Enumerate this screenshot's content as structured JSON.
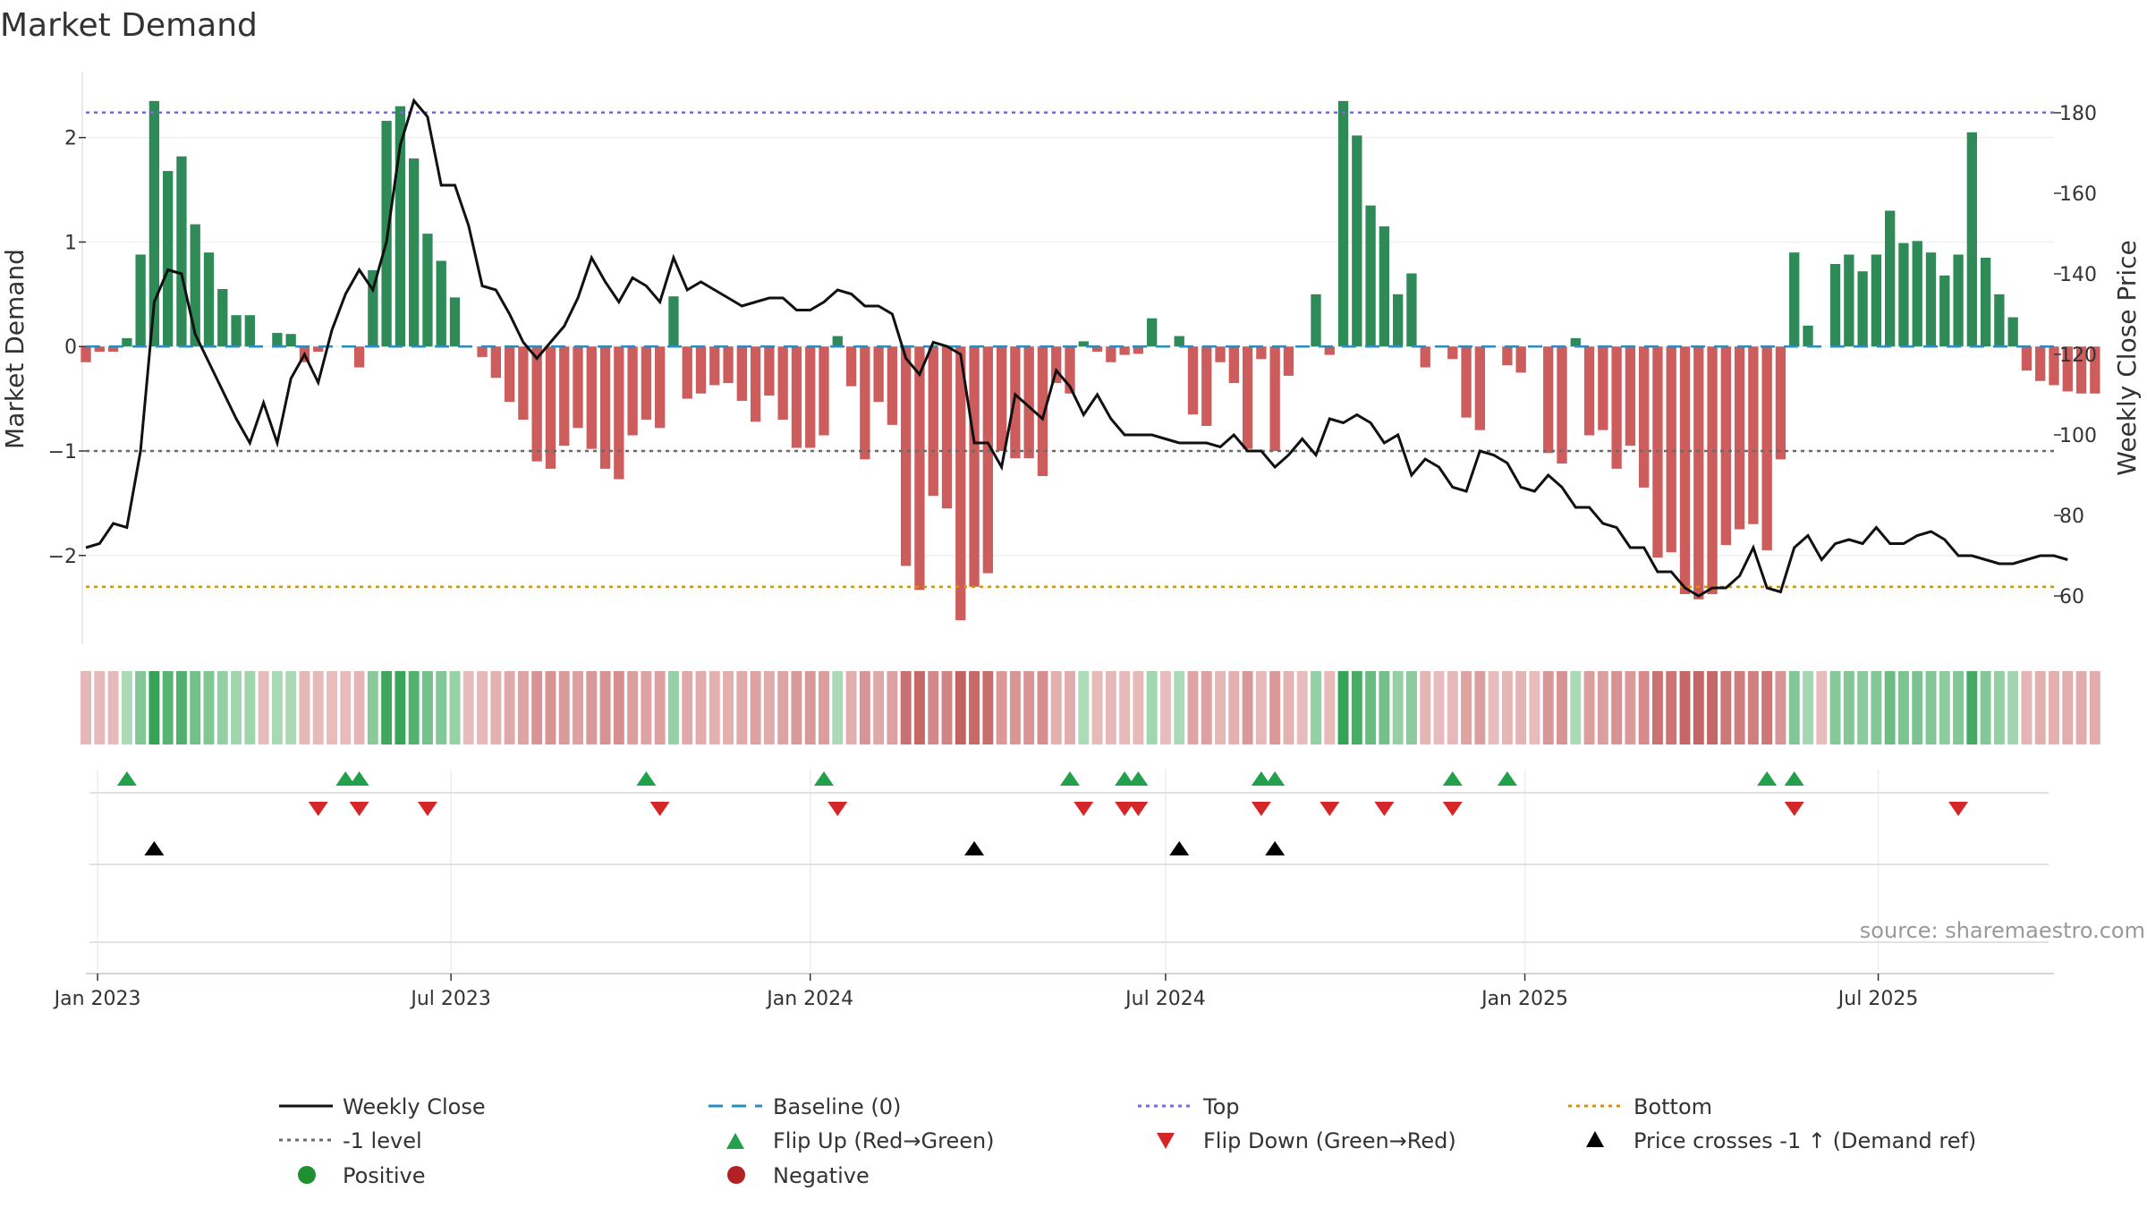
{
  "chart_data": {
    "type": "bar",
    "title": "Market Demand",
    "ylabel": "Market Demand",
    "y2label": "Weekly Close Price",
    "ylim": [
      -2.85,
      2.7
    ],
    "y2lim": [
      48,
      192
    ],
    "yticks": [
      2,
      1,
      0,
      -1,
      -2
    ],
    "ytick_labels": [
      "2",
      "1",
      "0",
      "−1",
      "−2"
    ],
    "y2ticks": [
      180,
      160,
      140,
      120,
      100,
      80,
      60
    ],
    "xrange": [
      "2022-12-26",
      "2025-09-29"
    ],
    "xticks": [
      {
        "date": "2023-01-01",
        "label": "Jan 2023"
      },
      {
        "date": "2023-07-01",
        "label": "Jul 2023"
      },
      {
        "date": "2024-01-01",
        "label": "Jan 2024"
      },
      {
        "date": "2024-07-01",
        "label": "Jul 2024"
      },
      {
        "date": "2025-01-01",
        "label": "Jan 2025"
      },
      {
        "date": "2025-07-01",
        "label": "Jul 2025"
      }
    ],
    "start_date": "2022-12-26",
    "week_step_days": 7,
    "demand": [
      -0.15,
      -0.05,
      -0.05,
      0.08,
      0.88,
      2.35,
      1.68,
      1.82,
      1.17,
      0.9,
      0.55,
      0.3,
      0.3,
      0,
      0.13,
      0.12,
      -0.15,
      -0.05,
      0,
      0,
      -0.2,
      0.73,
      2.16,
      2.3,
      1.8,
      1.08,
      0.82,
      0.47,
      0,
      -0.1,
      -0.3,
      -0.53,
      -0.7,
      -1.1,
      -1.17,
      -0.95,
      -0.78,
      -0.98,
      -1.17,
      -1.27,
      -0.85,
      -0.7,
      -0.78,
      0.48,
      -0.5,
      -0.45,
      -0.37,
      -0.35,
      -0.52,
      -0.72,
      -0.47,
      -0.7,
      -0.97,
      -0.97,
      -0.85,
      0.1,
      -0.38,
      -1.08,
      -0.53,
      -0.75,
      -2.1,
      -2.33,
      -1.43,
      -1.55,
      -2.62,
      -2.3,
      -2.17,
      -1.0,
      -1.07,
      -1.07,
      -1.24,
      -0.35,
      -0.45,
      0.05,
      -0.05,
      -0.15,
      -0.08,
      -0.07,
      0.27,
      0,
      0.1,
      -0.65,
      -0.76,
      -0.15,
      -0.35,
      -0.98,
      -0.12,
      -1.0,
      -0.28,
      0,
      0.5,
      -0.08,
      2.35,
      2.02,
      1.35,
      1.15,
      0.5,
      0.7,
      -0.2,
      0,
      -0.12,
      -0.68,
      -0.8,
      0,
      -0.18,
      -0.25,
      0,
      -1.02,
      -1.12,
      0.08,
      -0.85,
      -0.8,
      -1.17,
      -0.95,
      -1.35,
      -2.02,
      -1.97,
      -2.37,
      -2.42,
      -2.37,
      -1.9,
      -1.75,
      -1.7,
      -1.95,
      -1.08,
      0.9,
      0.2,
      0,
      0.79,
      0.88,
      0.72,
      0.88,
      1.3,
      0.99,
      1.01,
      0.9,
      0.68,
      0.88,
      2.05,
      0.85,
      0.5,
      0.28,
      -0.23,
      -0.33,
      -0.37,
      -0.43,
      -0.45,
      -0.45
    ],
    "weekly_close": [
      72,
      73,
      78,
      77,
      96,
      133,
      141,
      140,
      125,
      118,
      111,
      104,
      98,
      108,
      98,
      114,
      120,
      113,
      126,
      135,
      141,
      136,
      148,
      172,
      183,
      179,
      162,
      162,
      152,
      137,
      136,
      130,
      123,
      119,
      123,
      127,
      134,
      144,
      138,
      133,
      139,
      137,
      133,
      144,
      136,
      138,
      136,
      134,
      132,
      133,
      134,
      134,
      131,
      131,
      133,
      136,
      135,
      132,
      132,
      130,
      119,
      115,
      123,
      122,
      120,
      98,
      98,
      92,
      110,
      107,
      104,
      116,
      112,
      105,
      110,
      104,
      100,
      100,
      100,
      99,
      98,
      98,
      98,
      97,
      100,
      96,
      96,
      92,
      95,
      99,
      95,
      104,
      103,
      105,
      103,
      98,
      100,
      90,
      94,
      92,
      87,
      86,
      96,
      95,
      93,
      87,
      86,
      90,
      87,
      82,
      82,
      78,
      77,
      72,
      72,
      66,
      66,
      62,
      60,
      62,
      62,
      65,
      72,
      62,
      61,
      72,
      75,
      69,
      73,
      74,
      73,
      77,
      73,
      73,
      75,
      76,
      74,
      70,
      70,
      69,
      68,
      68,
      69,
      70,
      70,
      69
    ],
    "reference_lines": [
      {
        "name": "Top",
        "value": 2.24,
        "color": "#7b68d9"
      },
      {
        "name": "Bottom",
        "value": -2.3,
        "color": "#d4930f"
      },
      {
        "name": "-1 level",
        "value": -1,
        "color": "#6b6b6b"
      }
    ],
    "flip_up": [
      "2023-01-16",
      "2023-05-08",
      "2023-05-15",
      "2023-10-09",
      "2024-01-08",
      "2024-05-13",
      "2024-06-10",
      "2024-06-17",
      "2024-08-19",
      "2024-08-26",
      "2024-11-25",
      "2024-12-23",
      "2025-05-05",
      "2025-05-19"
    ],
    "flip_down": [
      "2023-04-24",
      "2023-05-15",
      "2023-06-19",
      "2023-10-16",
      "2024-01-15",
      "2024-05-20",
      "2024-06-10",
      "2024-06-17",
      "2024-08-19",
      "2024-09-23",
      "2024-10-21",
      "2024-11-25",
      "2025-05-19",
      "2025-08-11"
    ],
    "price_cross": [
      "2023-01-30",
      "2024-03-25",
      "2024-07-08",
      "2024-08-26"
    ],
    "colors": {
      "positive": "#2e8b57",
      "negative": "#cd5c5c",
      "weekly_close": "#111111",
      "baseline": "#2b8cbe",
      "flip_up": "#22a04b",
      "flip_down": "#d62728",
      "price_cross": "#000000",
      "legend_positive": "#1f8f2f",
      "legend_negative": "#b22222"
    },
    "legend": [
      {
        "label": "Weekly Close",
        "icon": "solid-line"
      },
      {
        "label": "Baseline (0)",
        "icon": "dashed-line"
      },
      {
        "label": "Top",
        "icon": "dotted-line"
      },
      {
        "label": "Bottom",
        "icon": "dotted-line"
      },
      {
        "label": "-1 level",
        "icon": "dotted-line"
      },
      {
        "label": "Flip Up (Red→Green)",
        "icon": "up-triangle"
      },
      {
        "label": "Flip Down (Green→Red)",
        "icon": "down-triangle"
      },
      {
        "label": "Price crosses -1 ↑ (Demand ref)",
        "icon": "up-triangle"
      },
      {
        "label": "Positive",
        "icon": "dot"
      },
      {
        "label": "Negative",
        "icon": "dot"
      }
    ],
    "source": "source: sharemaestro.com"
  }
}
